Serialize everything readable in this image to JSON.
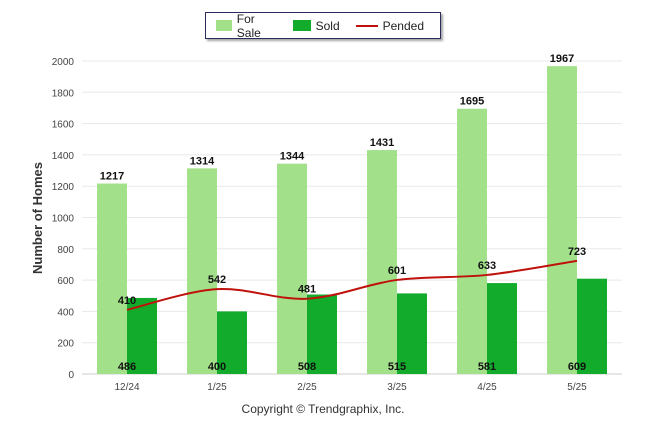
{
  "legend": {
    "for_sale": "For Sale",
    "sold": "Sold",
    "pended": "Pended"
  },
  "footer": {
    "copyright": "Copyright © Trendgraphix, Inc."
  },
  "colors": {
    "for_sale": "#a2e08a",
    "sold": "#12ab2b",
    "pended": "#c0120c",
    "grid": "#e8e8e8"
  },
  "chart_data": {
    "type": "bar",
    "categories": [
      "12/24",
      "1/25",
      "2/25",
      "3/25",
      "4/25",
      "5/25"
    ],
    "series": [
      {
        "name": "For Sale",
        "type": "bar",
        "values": [
          1217,
          1314,
          1344,
          1431,
          1695,
          1967
        ]
      },
      {
        "name": "Sold",
        "type": "bar",
        "values": [
          486,
          400,
          508,
          515,
          581,
          609
        ]
      },
      {
        "name": "Pended",
        "type": "line",
        "values": [
          410,
          542,
          481,
          601,
          633,
          723
        ]
      }
    ],
    "ylabel": "Number of Homes",
    "xlabel": "",
    "ylim": [
      0,
      2000
    ],
    "yticks": [
      0,
      200,
      400,
      600,
      800,
      1000,
      1200,
      1400,
      1600,
      1800,
      2000
    ],
    "grid": true,
    "legend_position": "top-center"
  }
}
